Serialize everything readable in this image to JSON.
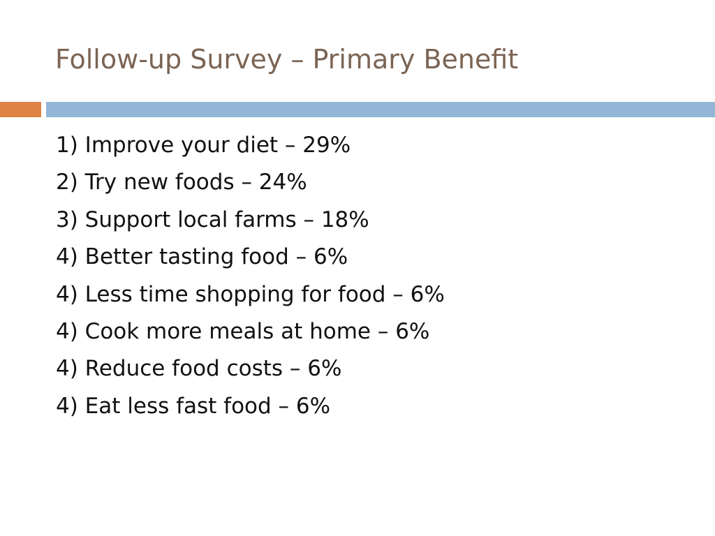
{
  "slide": {
    "title": "Follow-up Survey – Primary Benefit",
    "items": [
      "1) Improve your diet – 29%",
      "2) Try new foods – 24%",
      "3) Support local farms – 18%",
      "4) Better tasting food – 6%",
      "4) Less time shopping for food – 6%",
      "4) Cook more meals at home – 6%",
      "4) Reduce food costs – 6%",
      "4) Eat less fast food – 6%"
    ]
  },
  "colors": {
    "title_text": "#7b6454",
    "accent_orange": "#df8344",
    "accent_blue": "#93b6d6",
    "body_text": "#111111"
  }
}
